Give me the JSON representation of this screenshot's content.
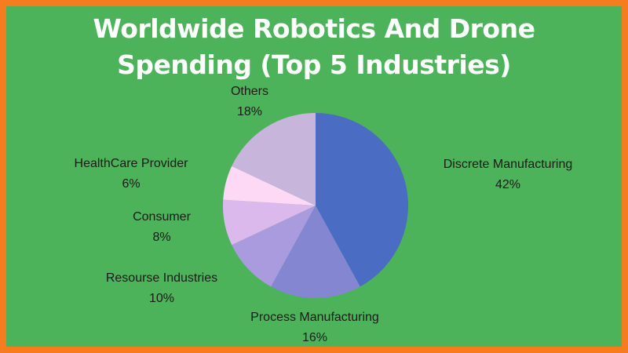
{
  "chart_data": {
    "type": "pie",
    "title": "Worldwide Robotics And Drone Spending (Top 5 Industries)",
    "categories": [
      "Discrete Manufacturing",
      "Process Manufacturing",
      "Resourse Industries",
      "Consumer",
      "HealthCare Provider",
      "Others"
    ],
    "values": [
      42,
      16,
      10,
      8,
      6,
      18
    ],
    "value_labels": [
      "42%",
      "16%",
      "10%",
      "8%",
      "6%",
      "18%"
    ],
    "colors": [
      "#4a6cc2",
      "#8486d2",
      "#aa9bde",
      "#dcb9ec",
      "#fdd9f6",
      "#c8b5dc"
    ]
  }
}
